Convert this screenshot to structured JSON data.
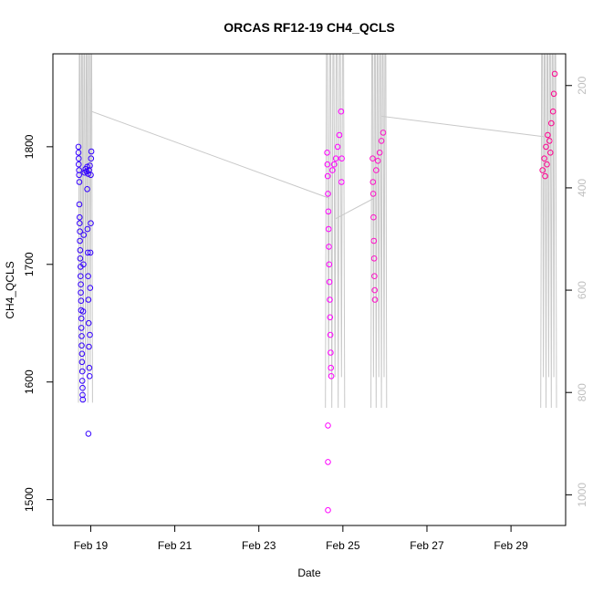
{
  "chart_data": {
    "type": "scatter",
    "title": "ORCAS RF12-19 CH4_QCLS",
    "xlabel": "Date",
    "ylabel": "CH4_QCLS",
    "x_ticks": [
      "Feb 19",
      "Feb 21",
      "Feb 23",
      "Feb 25",
      "Feb 27",
      "Feb 29"
    ],
    "xlim": [
      "Feb 18.1",
      "Mar 1.3"
    ],
    "y_ticks": [
      1500,
      1600,
      1700,
      1800
    ],
    "ylim": [
      1478,
      1879
    ],
    "right_axis": {
      "ticks": [
        200,
        400,
        600,
        800,
        1000
      ],
      "ylim": [
        1060,
        138
      ],
      "color": "#bfbfbf",
      "description": "pressure trace (reversed axis)"
    },
    "series": [
      {
        "color": "#3300ff",
        "points": [
          {
            "x": "2016-02-18T17:00",
            "y": 1800
          },
          {
            "x": "2016-02-18T17:00",
            "y": 1795
          },
          {
            "x": "2016-02-18T17:10",
            "y": 1790
          },
          {
            "x": "2016-02-18T17:10",
            "y": 1785
          },
          {
            "x": "2016-02-18T17:20",
            "y": 1780
          },
          {
            "x": "2016-02-18T17:20",
            "y": 1776
          },
          {
            "x": "2016-02-18T17:30",
            "y": 1770
          },
          {
            "x": "2016-02-18T17:30",
            "y": 1751
          },
          {
            "x": "2016-02-18T17:40",
            "y": 1740
          },
          {
            "x": "2016-02-18T17:40",
            "y": 1735
          },
          {
            "x": "2016-02-18T17:50",
            "y": 1728
          },
          {
            "x": "2016-02-18T17:50",
            "y": 1720
          },
          {
            "x": "2016-02-18T18:00",
            "y": 1712
          },
          {
            "x": "2016-02-18T18:00",
            "y": 1705
          },
          {
            "x": "2016-02-18T18:10",
            "y": 1698
          },
          {
            "x": "2016-02-18T18:10",
            "y": 1690
          },
          {
            "x": "2016-02-18T18:20",
            "y": 1683
          },
          {
            "x": "2016-02-18T18:20",
            "y": 1676
          },
          {
            "x": "2016-02-18T18:30",
            "y": 1669
          },
          {
            "x": "2016-02-18T18:30",
            "y": 1661
          },
          {
            "x": "2016-02-18T18:40",
            "y": 1654
          },
          {
            "x": "2016-02-18T18:40",
            "y": 1646
          },
          {
            "x": "2016-02-18T18:50",
            "y": 1639
          },
          {
            "x": "2016-02-18T18:50",
            "y": 1631
          },
          {
            "x": "2016-02-18T19:00",
            "y": 1624
          },
          {
            "x": "2016-02-18T19:00",
            "y": 1617
          },
          {
            "x": "2016-02-18T19:10",
            "y": 1609
          },
          {
            "x": "2016-02-18T19:10",
            "y": 1601
          },
          {
            "x": "2016-02-18T19:20",
            "y": 1595
          },
          {
            "x": "2016-02-18T19:20",
            "y": 1589
          },
          {
            "x": "2016-02-18T19:30",
            "y": 1585
          },
          {
            "x": "2016-02-18T19:40",
            "y": 1660
          },
          {
            "x": "2016-02-18T19:50",
            "y": 1700
          },
          {
            "x": "2016-02-18T20:00",
            "y": 1725
          },
          {
            "x": "2016-02-18T20:30",
            "y": 1778
          },
          {
            "x": "2016-02-18T21:00",
            "y": 1781
          },
          {
            "x": "2016-02-18T21:30",
            "y": 1779
          },
          {
            "x": "2016-02-18T22:00",
            "y": 1783
          },
          {
            "x": "2016-02-18T22:30",
            "y": 1777
          },
          {
            "x": "2016-02-18T23:00",
            "y": 1780
          },
          {
            "x": "2016-02-18T23:30",
            "y": 1784
          },
          {
            "x": "2016-02-19T00:00",
            "y": 1776
          },
          {
            "x": "2016-02-18T22:00",
            "y": 1764
          },
          {
            "x": "2016-02-18T22:10",
            "y": 1730
          },
          {
            "x": "2016-02-18T22:20",
            "y": 1710
          },
          {
            "x": "2016-02-18T22:30",
            "y": 1690
          },
          {
            "x": "2016-02-18T22:40",
            "y": 1670
          },
          {
            "x": "2016-02-18T22:50",
            "y": 1650
          },
          {
            "x": "2016-02-18T23:00",
            "y": 1630
          },
          {
            "x": "2016-02-18T23:10",
            "y": 1612
          },
          {
            "x": "2016-02-18T23:20",
            "y": 1605
          },
          {
            "x": "2016-02-18T23:30",
            "y": 1640
          },
          {
            "x": "2016-02-18T23:40",
            "y": 1680
          },
          {
            "x": "2016-02-18T23:50",
            "y": 1710
          },
          {
            "x": "2016-02-19T00:00",
            "y": 1735
          },
          {
            "x": "2016-02-19T00:10",
            "y": 1790
          },
          {
            "x": "2016-02-19T00:20",
            "y": 1796
          },
          {
            "x": "2016-02-18T22:40",
            "y": 1556
          }
        ]
      },
      {
        "color": "#ff00ff",
        "points": [
          {
            "x": "2016-02-24T15:00",
            "y": 1795
          },
          {
            "x": "2016-02-24T15:10",
            "y": 1785
          },
          {
            "x": "2016-02-24T15:20",
            "y": 1775
          },
          {
            "x": "2016-02-24T15:30",
            "y": 1760
          },
          {
            "x": "2016-02-24T15:40",
            "y": 1745
          },
          {
            "x": "2016-02-24T15:50",
            "y": 1730
          },
          {
            "x": "2016-02-24T16:00",
            "y": 1715
          },
          {
            "x": "2016-02-24T16:10",
            "y": 1700
          },
          {
            "x": "2016-02-24T16:20",
            "y": 1685
          },
          {
            "x": "2016-02-24T16:30",
            "y": 1670
          },
          {
            "x": "2016-02-24T16:40",
            "y": 1655
          },
          {
            "x": "2016-02-24T16:50",
            "y": 1640
          },
          {
            "x": "2016-02-24T17:00",
            "y": 1625
          },
          {
            "x": "2016-02-24T17:10",
            "y": 1612
          },
          {
            "x": "2016-02-24T17:20",
            "y": 1605
          },
          {
            "x": "2016-02-24T15:30",
            "y": 1563
          },
          {
            "x": "2016-02-24T15:30",
            "y": 1532
          },
          {
            "x": "2016-02-24T15:30",
            "y": 1491
          },
          {
            "x": "2016-02-24T18:00",
            "y": 1780
          },
          {
            "x": "2016-02-24T19:00",
            "y": 1785
          },
          {
            "x": "2016-02-24T20:00",
            "y": 1790
          },
          {
            "x": "2016-02-24T21:00",
            "y": 1800
          },
          {
            "x": "2016-02-24T22:00",
            "y": 1810
          },
          {
            "x": "2016-02-24T23:00",
            "y": 1830
          },
          {
            "x": "2016-02-24T23:10",
            "y": 1770
          },
          {
            "x": "2016-02-24T23:20",
            "y": 1790
          }
        ]
      },
      {
        "color": "#ff10c8",
        "points": [
          {
            "x": "2016-02-25T17:00",
            "y": 1790
          },
          {
            "x": "2016-02-25T17:10",
            "y": 1770
          },
          {
            "x": "2016-02-25T17:20",
            "y": 1760
          },
          {
            "x": "2016-02-25T17:30",
            "y": 1740
          },
          {
            "x": "2016-02-25T17:40",
            "y": 1720
          },
          {
            "x": "2016-02-25T17:50",
            "y": 1705
          },
          {
            "x": "2016-02-25T18:00",
            "y": 1690
          },
          {
            "x": "2016-02-25T18:10",
            "y": 1678
          },
          {
            "x": "2016-02-25T18:20",
            "y": 1670
          },
          {
            "x": "2016-02-25T19:00",
            "y": 1780
          },
          {
            "x": "2016-02-25T20:00",
            "y": 1788
          },
          {
            "x": "2016-02-25T21:00",
            "y": 1795
          },
          {
            "x": "2016-02-25T22:00",
            "y": 1805
          },
          {
            "x": "2016-02-25T23:00",
            "y": 1812
          }
        ]
      },
      {
        "color": "#ff0090",
        "points": [
          {
            "x": "2016-02-29T18:00",
            "y": 1780
          },
          {
            "x": "2016-02-29T19:00",
            "y": 1790
          },
          {
            "x": "2016-02-29T20:00",
            "y": 1800
          },
          {
            "x": "2016-02-29T21:00",
            "y": 1810
          },
          {
            "x": "2016-02-29T22:00",
            "y": 1805
          },
          {
            "x": "2016-02-29T23:00",
            "y": 1820
          },
          {
            "x": "2016-03-01T00:00",
            "y": 1830
          },
          {
            "x": "2016-03-01T00:30",
            "y": 1845
          },
          {
            "x": "2016-03-01T01:00",
            "y": 1862
          },
          {
            "x": "2016-02-29T19:30",
            "y": 1775
          },
          {
            "x": "2016-02-29T20:30",
            "y": 1785
          },
          {
            "x": "2016-02-29T22:30",
            "y": 1795
          }
        ]
      }
    ]
  }
}
